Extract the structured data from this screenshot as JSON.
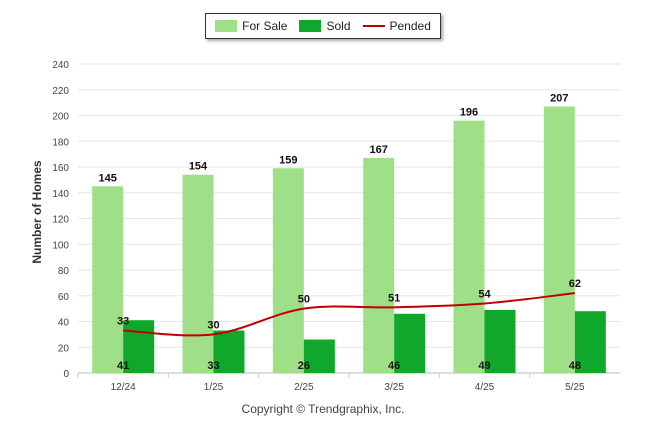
{
  "chart_data": {
    "type": "bar",
    "categories": [
      "12/24",
      "1/25",
      "2/25",
      "3/25",
      "4/25",
      "5/25"
    ],
    "series": [
      {
        "name": "For Sale",
        "type": "bar",
        "color": "#9fdf87",
        "values": [
          145,
          154,
          159,
          167,
          196,
          207
        ]
      },
      {
        "name": "Sold",
        "type": "bar",
        "color": "#10a82a",
        "values": [
          41,
          33,
          26,
          46,
          49,
          48
        ]
      },
      {
        "name": "Pended",
        "type": "line",
        "color": "#c00000",
        "values": [
          33,
          30,
          50,
          51,
          54,
          62
        ]
      }
    ],
    "ylabel": "Number of Homes",
    "xlabel": "",
    "ylim": [
      0,
      240
    ],
    "yticks": [
      0,
      20,
      40,
      60,
      80,
      100,
      120,
      140,
      160,
      180,
      200,
      220,
      240
    ],
    "grid": true,
    "legend_position": "top-center"
  },
  "footer": {
    "copyright": "Copyright © Trendgraphix, Inc."
  }
}
